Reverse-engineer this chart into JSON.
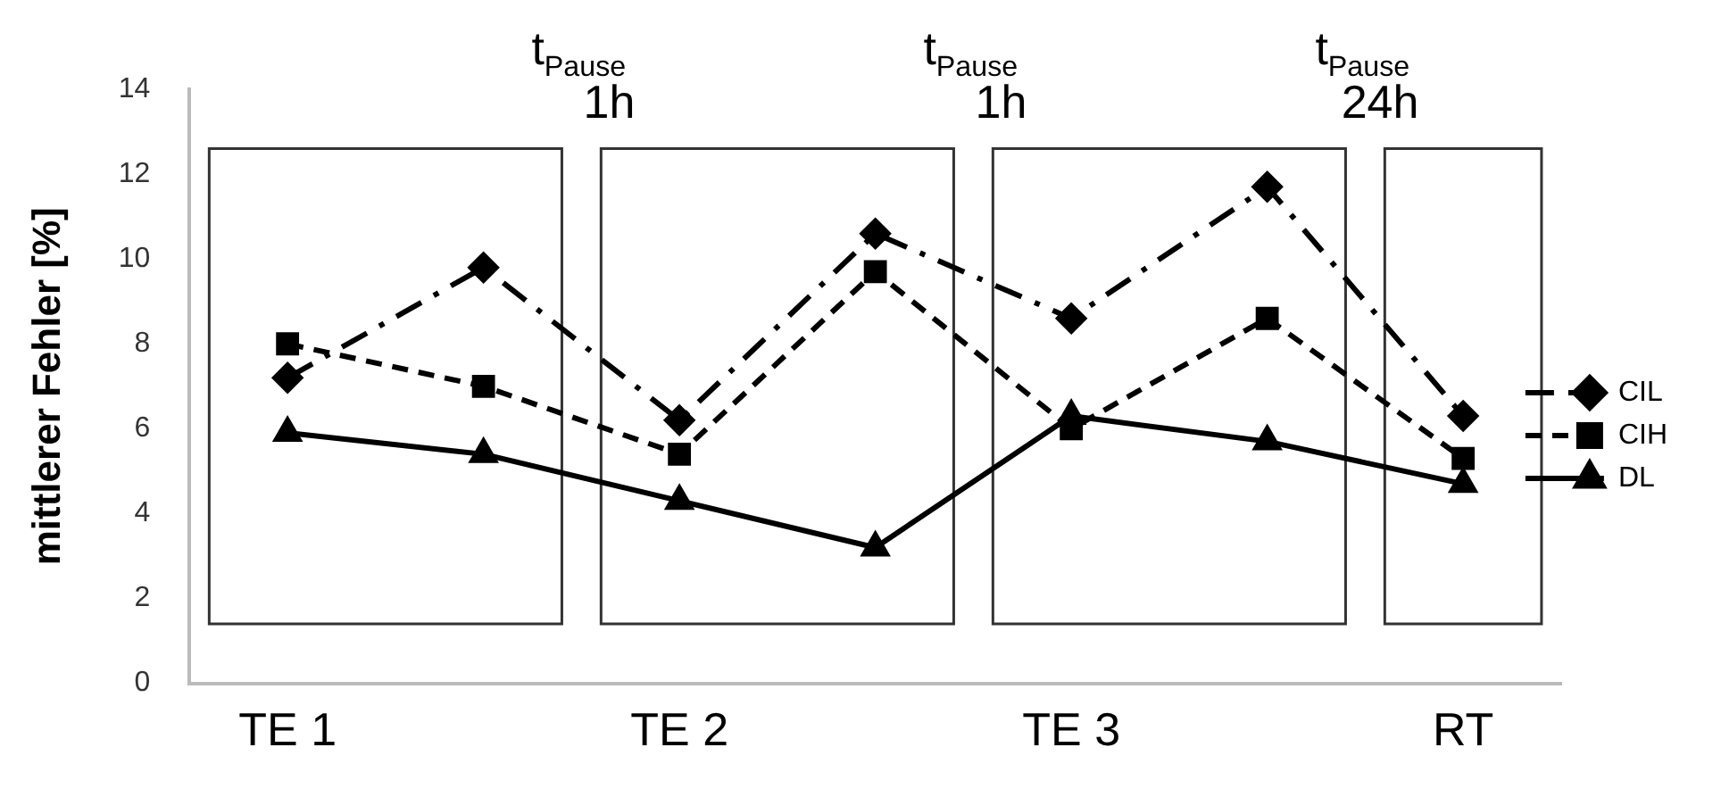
{
  "chart_data": {
    "type": "line",
    "ylabel": "mittlerer Fehler [%]",
    "categories": [
      "TE 1",
      null,
      "TE 2",
      null,
      "TE 3",
      null,
      "RT"
    ],
    "series": [
      {
        "name": "CIL",
        "color": "#000000",
        "marker": "diamond",
        "line_style": "dashdot",
        "values": [
          7.2,
          9.8,
          6.2,
          10.6,
          8.6,
          11.7,
          6.3
        ]
      },
      {
        "name": "CIH",
        "color": "#000000",
        "marker": "square",
        "line_style": "dashed",
        "values": [
          8.0,
          7.0,
          5.4,
          9.7,
          6.0,
          8.6,
          5.3
        ]
      },
      {
        "name": "DL",
        "color": "#000000",
        "marker": "triangle",
        "line_style": "solid",
        "values": [
          5.9,
          5.4,
          4.3,
          3.2,
          6.3,
          5.7,
          4.7
        ]
      }
    ],
    "ylim": [
      0,
      14
    ],
    "yticks": [
      0,
      2,
      4,
      6,
      8,
      10,
      12,
      14
    ],
    "grid": false,
    "legend": "right",
    "annotations": [
      "t$_{Pause}$ 1h",
      "t$_{Pause}$ 1h",
      "t$_{Pause}$ 24h"
    ]
  }
}
